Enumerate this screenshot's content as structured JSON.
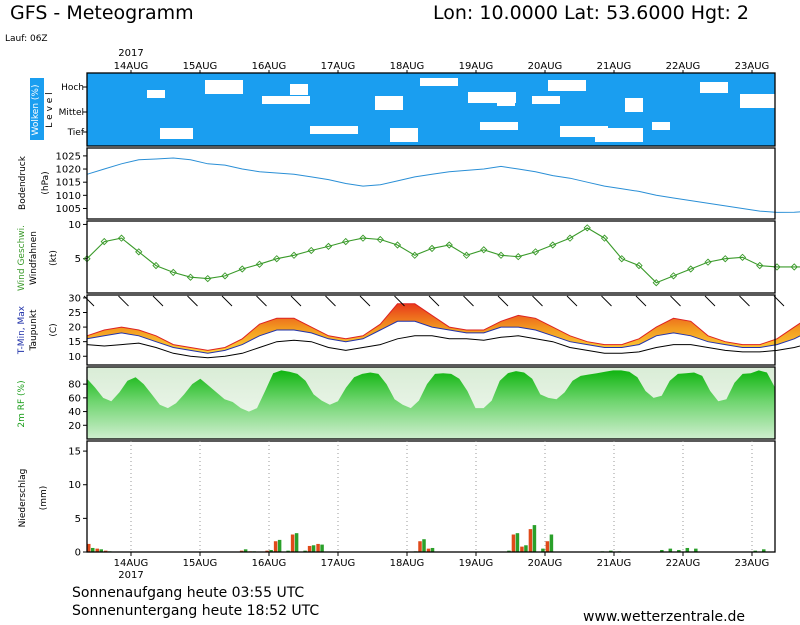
{
  "header": {
    "title": "GFS - Meteogramm",
    "location": "Lon: 10.0000  Lat: 53.6000  Hgt: 2",
    "run": "Lauf: 06Z"
  },
  "footer": {
    "sunrise": "Sonnenaufgang heute 03:55 UTC",
    "sunset": "Sonnenuntergang heute 18:52 UTC",
    "website": "www.wetterzentrale.de"
  },
  "colors": {
    "cloud_bg": "#1a9ef0",
    "pressure": "#2a8fd6",
    "wind": "#3a9a2a",
    "tmin": "#2233aa",
    "tmax": "#dd2222",
    "dew": "#000000",
    "rh_dark": "#1cc21c",
    "precip_conv": "#e04a1a",
    "precip_large": "#2aa02a"
  },
  "chart_data": {
    "type": "meteogram",
    "year": "2017",
    "days": [
      "14AUG",
      "15AUG",
      "16AUG",
      "17AUG",
      "18AUG",
      "19AUG",
      "20AUG",
      "21AUG",
      "22AUG",
      "23AUG"
    ],
    "step_hours": 6,
    "panels": [
      {
        "name": "clouds",
        "ylabel": [
          "Wolken (%)",
          "L e v e l"
        ],
        "levels": [
          "Hoch",
          "Mittel",
          "Tief"
        ],
        "type": "heatmap"
      },
      {
        "name": "pressure",
        "ylabel": [
          "Bodendruck",
          "(hPa)"
        ],
        "yticks": [
          1005,
          1010,
          1015,
          1020,
          1025
        ],
        "ylim": [
          1001,
          1028
        ],
        "type": "line",
        "values": [
          1018,
          1020,
          1022,
          1023.5,
          1023.8,
          1024.2,
          1023.5,
          1022,
          1021.5,
          1020,
          1019,
          1018.5,
          1018,
          1017,
          1016,
          1014.5,
          1013.5,
          1014,
          1015.5,
          1017,
          1018,
          1019,
          1019.5,
          1020,
          1021,
          1020,
          1019,
          1017.5,
          1016.5,
          1015,
          1013.5,
          1012.5,
          1011.5,
          1010,
          1009,
          1008,
          1007,
          1006,
          1005,
          1004,
          1003.5,
          1003.6,
          1004,
          1004.8,
          1005.5,
          1006,
          1007.5,
          1009,
          1010,
          1010.5,
          1011,
          1012,
          1013,
          1014.5,
          1016.5,
          1017.5,
          1018.5,
          1019.2,
          1019.5,
          1019,
          1018.5,
          1018,
          1017,
          1016.5,
          1017,
          1017.5,
          1017,
          1016.5,
          1016.8,
          1017.2,
          1017.5,
          1018,
          1018.2,
          1018.5
        ]
      },
      {
        "name": "wind",
        "ylabel": [
          "Wind Geschwi.",
          "Windfahnen",
          "(kt)"
        ],
        "yticks": [
          5,
          10
        ],
        "ylim": [
          0,
          10.5
        ],
        "type": "line",
        "values": [
          5,
          7.5,
          8,
          6,
          4,
          3,
          2.3,
          2.1,
          2.5,
          3.5,
          4.2,
          5,
          5.5,
          6.2,
          6.8,
          7.5,
          8,
          7.8,
          7,
          5.5,
          6.5,
          7,
          5.5,
          6.3,
          5.5,
          5.3,
          6,
          7,
          8,
          9.5,
          8,
          5,
          4,
          1.5,
          2.5,
          3.5,
          4.5,
          5,
          5.2,
          4,
          3.8,
          3.8,
          3.8,
          3.5,
          3.3,
          3.5,
          3.5,
          3.8,
          4.2,
          5.5,
          2.5,
          3.5,
          4.5,
          6,
          9.5,
          9,
          7.5,
          8.5,
          5.5,
          5.8,
          5.5,
          4,
          3,
          4.5,
          6,
          8.2,
          7,
          6,
          7.5,
          5.5,
          7,
          6.5,
          6.8
        ]
      },
      {
        "name": "temperature",
        "ylabel": [
          "T-Min, Max",
          "Taupunkt",
          "(C)"
        ],
        "yticks": [
          10,
          15,
          20,
          25,
          30
        ],
        "ylim": [
          7,
          31
        ],
        "type": "area",
        "tmin": [
          16,
          17,
          18,
          17,
          15,
          13,
          12,
          11,
          12,
          14,
          17,
          19,
          19,
          18,
          16,
          15,
          16,
          19,
          22,
          22,
          20,
          19,
          18,
          18,
          20,
          20,
          19,
          17,
          15,
          14,
          13,
          13,
          14,
          17,
          18,
          17,
          15,
          14,
          13,
          13,
          14,
          16,
          19,
          19,
          17,
          15,
          14,
          13,
          13,
          14,
          14,
          16,
          16,
          16,
          16,
          17,
          17,
          17,
          16,
          16,
          16,
          16,
          17,
          17,
          17,
          19,
          20,
          18,
          17,
          16,
          14,
          14,
          14,
          13,
          12
        ],
        "tmax": [
          17,
          19,
          20,
          19,
          17,
          14,
          13,
          12,
          13,
          16,
          21,
          23,
          23,
          20,
          17,
          16,
          17,
          21,
          28,
          28,
          24,
          20,
          19,
          19,
          22,
          24,
          23,
          20,
          17,
          15,
          14,
          14,
          16,
          20,
          23,
          22,
          17,
          15,
          14,
          14,
          16,
          20,
          24,
          24,
          22,
          17,
          15,
          14,
          14,
          15,
          15,
          18,
          18,
          18,
          17,
          18,
          18,
          18,
          17,
          17,
          17,
          18,
          19,
          19,
          19,
          21,
          23,
          21,
          18,
          17,
          15,
          15,
          15,
          14,
          13
        ],
        "dew": [
          14,
          13.5,
          14,
          14.5,
          13,
          11,
          10,
          9.5,
          10,
          11,
          13,
          15,
          15.5,
          15,
          13,
          12,
          13,
          14,
          16,
          17,
          17,
          16,
          16,
          15.5,
          16.5,
          17,
          16,
          15,
          13,
          12,
          11,
          11,
          11.5,
          13,
          14,
          14,
          13,
          12,
          11.5,
          11.5,
          12,
          13,
          14.5,
          15,
          14.5,
          14,
          13,
          12.5,
          12,
          12,
          12.5,
          13.5,
          14.5,
          15,
          15,
          15.5,
          15.5,
          15,
          15,
          15,
          15,
          15.5,
          16,
          16,
          16,
          15,
          14,
          14,
          14.5,
          13,
          12,
          11,
          10.5,
          11,
          11.5
        ]
      },
      {
        "name": "rh",
        "ylabel": [
          "2m RF (%)"
        ],
        "yticks": [
          20,
          40,
          60,
          80
        ],
        "ylim": [
          0,
          105
        ],
        "type": "area",
        "values": [
          88,
          75,
          60,
          55,
          68,
          85,
          90,
          80,
          65,
          50,
          45,
          52,
          65,
          80,
          88,
          78,
          68,
          58,
          54,
          45,
          40,
          45,
          70,
          96,
          100,
          98,
          95,
          85,
          65,
          56,
          50,
          55,
          75,
          90,
          95,
          97,
          95,
          80,
          58,
          50,
          45,
          56,
          80,
          95,
          96,
          95,
          88,
          70,
          45,
          45,
          56,
          85,
          96,
          99,
          97,
          88,
          65,
          60,
          58,
          68,
          85,
          92,
          94,
          96,
          98,
          100,
          100,
          98,
          90,
          70,
          60,
          63,
          85,
          95,
          96,
          97,
          92,
          70,
          55,
          58,
          82,
          95,
          96,
          100,
          97,
          75
        ]
      },
      {
        "name": "precip",
        "ylabel": [
          "Niederschlag",
          "(mm)"
        ],
        "yticks": [
          0,
          5,
          10,
          15
        ],
        "ylim": [
          0,
          16.5
        ],
        "type": "bar",
        "conv": [
          1.2,
          0.5,
          0.2,
          0,
          0,
          0,
          0,
          0,
          0,
          0,
          0,
          0,
          0,
          0,
          0,
          0,
          0,
          0,
          0.2,
          0.1,
          0,
          0.2,
          1.6,
          0,
          2.6,
          0,
          0.9,
          1.2,
          0,
          0,
          0,
          0,
          0,
          0,
          0,
          0,
          0,
          0,
          0,
          1.6,
          0.5,
          0,
          0,
          0,
          0,
          0,
          0,
          0,
          0,
          0,
          2.6,
          0.8,
          3.4,
          0,
          1.6,
          0,
          0,
          0,
          0,
          0,
          0,
          0,
          0,
          0,
          0,
          0,
          0,
          0,
          0,
          0,
          0,
          0,
          0,
          0,
          0,
          0,
          0,
          0,
          0,
          0,
          0
        ],
        "large": [
          0.6,
          0.4,
          0.1,
          0,
          0,
          0,
          0,
          0,
          0,
          0,
          0,
          0,
          0,
          0,
          0,
          0,
          0,
          0,
          0.4,
          0.1,
          0,
          0.3,
          1.8,
          0.2,
          2.8,
          0.2,
          1.0,
          1.1,
          0,
          0,
          0,
          0,
          0,
          0,
          0,
          0,
          0,
          0,
          0.1,
          1.9,
          0.6,
          0,
          0,
          0,
          0,
          0,
          0,
          0,
          0,
          0.2,
          2.8,
          1.0,
          4.0,
          0.5,
          2.6,
          0,
          0,
          0,
          0,
          0,
          0.1,
          0.2,
          0.1,
          0,
          0,
          0,
          0,
          0.3,
          0.5,
          0.3,
          0.6,
          0.5,
          0,
          0,
          0,
          0,
          0,
          0,
          0.2,
          0.4,
          0,
          0,
          0,
          0,
          0
        ]
      }
    ]
  }
}
